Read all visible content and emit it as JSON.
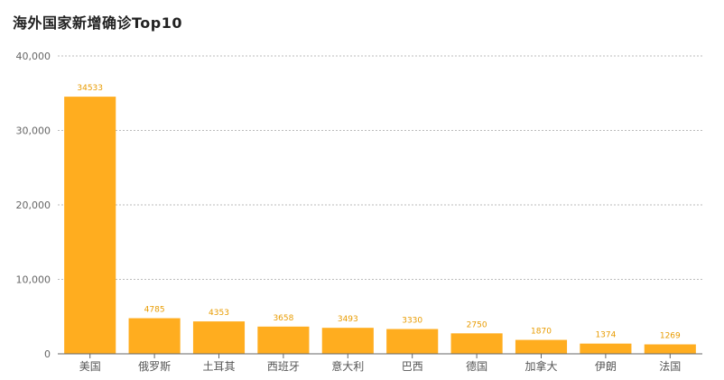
{
  "title": "海外国家新增确诊Top10",
  "chart_data": {
    "type": "bar",
    "title": "海外国家新增确诊Top10",
    "xlabel": "",
    "ylabel": "",
    "categories": [
      "美国",
      "俄罗斯",
      "土耳其",
      "西班牙",
      "意大利",
      "巴西",
      "德国",
      "加拿大",
      "伊朗",
      "法国"
    ],
    "values": [
      34533,
      4785,
      4353,
      3658,
      3493,
      3330,
      2750,
      1870,
      1374,
      1269
    ],
    "ylim": [
      0,
      40000
    ],
    "yticks": [
      0,
      10000,
      20000,
      30000,
      40000
    ],
    "ytick_labels": [
      "0",
      "10,000",
      "20,000",
      "30,000",
      "40,000"
    ],
    "grid": true,
    "legend": "none",
    "bar_color": "#ffad1f",
    "label_color": "#e89b00"
  }
}
